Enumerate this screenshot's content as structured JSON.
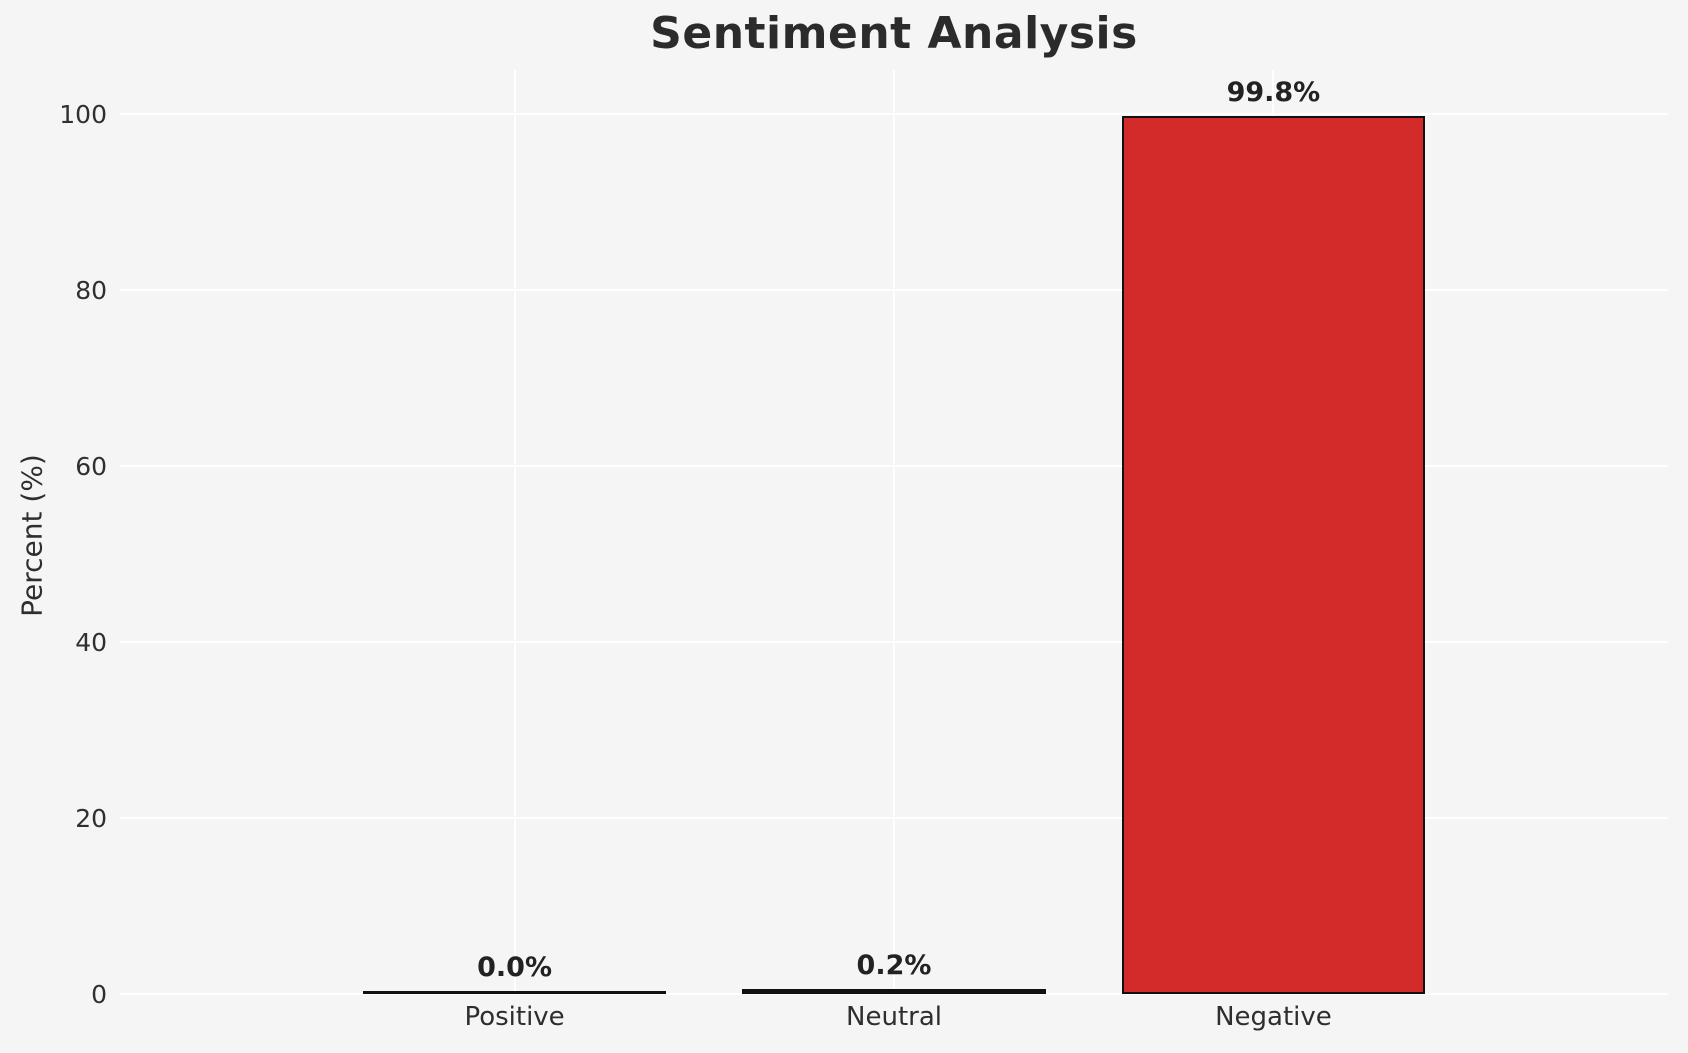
{
  "chart_data": {
    "type": "bar",
    "title": "Sentiment Analysis",
    "ylabel": "Percent (%)",
    "xlabel": "",
    "categories": [
      "Positive",
      "Neutral",
      "Negative"
    ],
    "values": [
      0.0,
      0.2,
      99.8
    ],
    "value_labels": [
      "0.0%",
      "0.2%",
      "99.8%"
    ],
    "yticks": [
      0,
      20,
      40,
      60,
      80,
      100
    ],
    "ylim": [
      0,
      105
    ],
    "grid": true,
    "legend_position": "none",
    "colors": {
      "background": "#f5f5f6",
      "gridline": "#ffffff",
      "bar_fill": "#d32a2a",
      "bar_edge": "#111111",
      "title_text": "#2b2b2b",
      "tick_text": "#303030"
    }
  }
}
